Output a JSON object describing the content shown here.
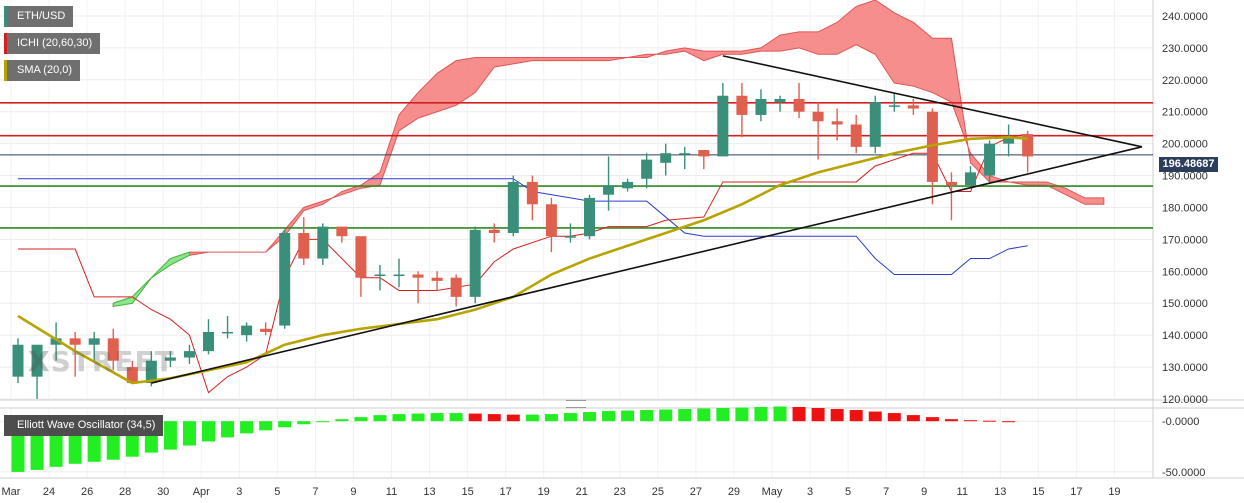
{
  "legend": {
    "symbol": "ETH/USD",
    "ichimoku": "ICHI (20,60,30)",
    "sma": "SMA (20,0)",
    "oscillator": "Elliott Wave Oscillator (34,5)"
  },
  "watermark": {
    "prefix": "X",
    "word": "STREET"
  },
  "current_price": "196.48687",
  "colors": {
    "bull": "#3a8f7b",
    "bear": "#e06050",
    "cloud": "#f47a7a",
    "cloud_bull": "#8fe28f",
    "sma": "#b7a400",
    "kijun": "#d62020",
    "tenkan": "#2c3ccc",
    "hline_red": "#d62020",
    "hline_green": "#2e8a1f",
    "osc_pos": "#22ee22",
    "osc_neg": "#ee1111"
  },
  "chart_data": [
    {
      "type": "candlestick",
      "title": "ETH/USD",
      "ylim": [
        120,
        245
      ],
      "y_ticks": [
        "240.0000",
        "230.0000",
        "220.0000",
        "210.0000",
        "200.0000",
        "190.0000",
        "180.0000",
        "170.0000",
        "160.0000",
        "150.0000",
        "140.0000",
        "130.0000",
        "120.0000"
      ],
      "x_ticks": [
        "Mar",
        "24",
        "26",
        "28",
        "30",
        "Apr",
        "3",
        "5",
        "7",
        "9",
        "11",
        "13",
        "15",
        "17",
        "19",
        "21",
        "23",
        "25",
        "27",
        "29",
        "May",
        "3",
        "5",
        "7",
        "9",
        "11",
        "13",
        "15",
        "17",
        "19"
      ],
      "candles": [
        {
          "o": 127,
          "h": 139,
          "l": 125,
          "c": 137
        },
        {
          "o": 127,
          "h": 136,
          "l": 120,
          "c": 137
        },
        {
          "o": 137,
          "h": 144,
          "l": 132,
          "c": 139
        },
        {
          "o": 139,
          "h": 141,
          "l": 127,
          "c": 137
        },
        {
          "o": 137,
          "h": 141,
          "l": 132,
          "c": 139
        },
        {
          "o": 139,
          "h": 142,
          "l": 129,
          "c": 132
        },
        {
          "o": 130,
          "h": 132,
          "l": 125,
          "c": 125
        },
        {
          "o": 125,
          "h": 135,
          "l": 124,
          "c": 132
        },
        {
          "o": 132,
          "h": 135,
          "l": 130,
          "c": 133
        },
        {
          "o": 133,
          "h": 137,
          "l": 131,
          "c": 135
        },
        {
          "o": 135,
          "h": 145,
          "l": 134,
          "c": 141
        },
        {
          "o": 141,
          "h": 146,
          "l": 139,
          "c": 141
        },
        {
          "o": 140,
          "h": 144,
          "l": 138,
          "c": 143
        },
        {
          "o": 142,
          "h": 144,
          "l": 140,
          "c": 141
        },
        {
          "o": 143,
          "h": 173,
          "l": 142,
          "c": 172
        },
        {
          "o": 172,
          "h": 177,
          "l": 162,
          "c": 164
        },
        {
          "o": 164,
          "h": 175,
          "l": 162,
          "c": 174
        },
        {
          "o": 174,
          "h": 174,
          "l": 169,
          "c": 171
        },
        {
          "o": 171,
          "h": 170,
          "l": 152,
          "c": 158
        },
        {
          "o": 159,
          "h": 162,
          "l": 154,
          "c": 159
        },
        {
          "o": 159,
          "h": 164,
          "l": 155,
          "c": 159
        },
        {
          "o": 159,
          "h": 160,
          "l": 150,
          "c": 158
        },
        {
          "o": 158,
          "h": 160,
          "l": 154,
          "c": 157
        },
        {
          "o": 158,
          "h": 159,
          "l": 149,
          "c": 152
        },
        {
          "o": 152,
          "h": 174,
          "l": 150,
          "c": 173
        },
        {
          "o": 173,
          "h": 175,
          "l": 169,
          "c": 172
        },
        {
          "o": 172,
          "h": 190,
          "l": 171,
          "c": 188
        },
        {
          "o": 188,
          "h": 190,
          "l": 176,
          "c": 181
        },
        {
          "o": 181,
          "h": 183,
          "l": 166,
          "c": 171
        },
        {
          "o": 171,
          "h": 175,
          "l": 169,
          "c": 171
        },
        {
          "o": 171,
          "h": 184,
          "l": 170,
          "c": 183
        },
        {
          "o": 184,
          "h": 196,
          "l": 179,
          "c": 187
        },
        {
          "o": 186,
          "h": 189,
          "l": 185,
          "c": 188
        },
        {
          "o": 189,
          "h": 197,
          "l": 186,
          "c": 195
        },
        {
          "o": 194,
          "h": 200,
          "l": 190,
          "c": 197
        },
        {
          "o": 197,
          "h": 199,
          "l": 192,
          "c": 197
        },
        {
          "o": 198,
          "h": 198,
          "l": 192,
          "c": 196
        },
        {
          "o": 196,
          "h": 219,
          "l": 196,
          "c": 215
        },
        {
          "o": 215,
          "h": 219,
          "l": 202,
          "c": 209
        },
        {
          "o": 209,
          "h": 217,
          "l": 207,
          "c": 214
        },
        {
          "o": 213,
          "h": 215,
          "l": 210,
          "c": 214
        },
        {
          "o": 214,
          "h": 219,
          "l": 208,
          "c": 210
        },
        {
          "o": 210,
          "h": 213,
          "l": 195,
          "c": 207
        },
        {
          "o": 207,
          "h": 211,
          "l": 201,
          "c": 206
        },
        {
          "o": 206,
          "h": 209,
          "l": 197,
          "c": 199
        },
        {
          "o": 199,
          "h": 215,
          "l": 197,
          "c": 213
        },
        {
          "o": 212,
          "h": 216,
          "l": 210,
          "c": 212
        },
        {
          "o": 212,
          "h": 214,
          "l": 209,
          "c": 211
        },
        {
          "o": 210,
          "h": 211,
          "l": 181,
          "c": 188
        },
        {
          "o": 188,
          "h": 191,
          "l": 176,
          "c": 187
        },
        {
          "o": 187,
          "h": 193,
          "l": 186,
          "c": 191
        },
        {
          "o": 190,
          "h": 201,
          "l": 188,
          "c": 200
        },
        {
          "o": 200,
          "h": 206,
          "l": 196,
          "c": 202
        },
        {
          "o": 203,
          "h": 204,
          "l": 191,
          "c": 196
        }
      ],
      "sma": [
        [
          0,
          146
        ],
        [
          3,
          135
        ],
        [
          6,
          125
        ],
        [
          8,
          126.5
        ],
        [
          10,
          129
        ],
        [
          12,
          131.5
        ],
        [
          14,
          137
        ],
        [
          16,
          140
        ],
        [
          18,
          142
        ],
        [
          20,
          143.5
        ],
        [
          22,
          145
        ],
        [
          24,
          148
        ],
        [
          26,
          152
        ],
        [
          28,
          159
        ],
        [
          30,
          164
        ],
        [
          32,
          168
        ],
        [
          34,
          172
        ],
        [
          36,
          176
        ],
        [
          38,
          181
        ],
        [
          40,
          187
        ],
        [
          42,
          191
        ],
        [
          44,
          194
        ],
        [
          46,
          197
        ],
        [
          48,
          199.5
        ],
        [
          50,
          201.5
        ],
        [
          52,
          202
        ],
        [
          53,
          201.5
        ]
      ],
      "kijun": [
        [
          0,
          167
        ],
        [
          3,
          167
        ],
        [
          4,
          152
        ],
        [
          6,
          152
        ],
        [
          7,
          148
        ],
        [
          8,
          145
        ],
        [
          9,
          140
        ],
        [
          10,
          122
        ],
        [
          11,
          127
        ],
        [
          12,
          130
        ],
        [
          13,
          134
        ],
        [
          14,
          158
        ],
        [
          15,
          170
        ],
        [
          16,
          170
        ],
        [
          18,
          158
        ],
        [
          19,
          158
        ],
        [
          20,
          154
        ],
        [
          22,
          154
        ],
        [
          24,
          156
        ],
        [
          25,
          163
        ],
        [
          26,
          167
        ],
        [
          28,
          171
        ],
        [
          29,
          171
        ],
        [
          30,
          172
        ],
        [
          31,
          174
        ],
        [
          33,
          174
        ],
        [
          34,
          176
        ],
        [
          36,
          177
        ],
        [
          37,
          188
        ],
        [
          42,
          188
        ],
        [
          44,
          188
        ],
        [
          45,
          193
        ],
        [
          47,
          197
        ],
        [
          48,
          197
        ],
        [
          49,
          185
        ],
        [
          50,
          185
        ],
        [
          51,
          199
        ],
        [
          52,
          202
        ],
        [
          53,
          203
        ]
      ],
      "tenkan": [
        [
          0,
          189
        ],
        [
          10,
          189
        ],
        [
          20,
          189
        ],
        [
          26,
          189
        ],
        [
          27,
          185
        ],
        [
          29,
          183
        ],
        [
          30,
          182
        ],
        [
          33,
          182
        ],
        [
          34,
          177
        ],
        [
          35,
          172
        ],
        [
          36,
          171
        ],
        [
          40,
          171
        ],
        [
          44,
          171
        ],
        [
          45,
          164
        ],
        [
          46,
          159
        ],
        [
          48,
          159
        ],
        [
          49,
          159
        ],
        [
          50,
          164
        ],
        [
          51,
          164
        ],
        [
          52,
          167
        ],
        [
          53,
          168
        ]
      ],
      "cloud_top": [
        [
          5,
          149
        ],
        [
          6,
          150
        ],
        [
          7,
          158
        ],
        [
          8,
          164
        ],
        [
          9,
          166
        ],
        [
          10,
          166
        ],
        [
          11,
          166
        ],
        [
          12,
          166
        ],
        [
          13,
          166
        ],
        [
          14,
          171
        ],
        [
          15,
          179
        ],
        [
          16,
          181
        ],
        [
          17,
          185
        ],
        [
          18,
          187
        ],
        [
          19,
          191
        ],
        [
          20,
          209
        ],
        [
          21,
          216
        ],
        [
          22,
          222
        ],
        [
          23,
          226
        ],
        [
          24,
          227
        ],
        [
          25,
          227
        ],
        [
          26,
          227
        ],
        [
          27,
          227
        ],
        [
          28,
          227
        ],
        [
          29,
          227
        ],
        [
          30,
          227
        ],
        [
          31,
          227
        ],
        [
          32,
          227
        ],
        [
          33,
          227
        ],
        [
          34,
          229
        ],
        [
          35,
          230
        ],
        [
          36,
          229
        ],
        [
          37,
          229
        ],
        [
          38,
          229
        ],
        [
          39,
          230
        ],
        [
          40,
          234
        ],
        [
          41,
          235
        ],
        [
          42,
          235
        ],
        [
          43,
          238
        ],
        [
          44,
          243
        ],
        [
          45,
          245
        ],
        [
          46,
          241
        ],
        [
          47,
          238
        ],
        [
          48,
          233
        ],
        [
          49,
          233
        ],
        [
          50,
          194
        ],
        [
          51,
          188
        ],
        [
          52,
          188
        ],
        [
          53,
          188
        ],
        [
          54,
          188
        ],
        [
          55,
          186
        ],
        [
          56,
          183
        ],
        [
          57,
          183
        ]
      ],
      "cloud_bottom": [
        [
          5,
          150
        ],
        [
          6,
          152
        ],
        [
          7,
          158
        ],
        [
          8,
          162
        ],
        [
          9,
          165
        ],
        [
          10,
          166
        ],
        [
          11,
          166
        ],
        [
          12,
          166
        ],
        [
          13,
          166
        ],
        [
          14,
          173
        ],
        [
          15,
          180
        ],
        [
          16,
          182
        ],
        [
          17,
          184
        ],
        [
          18,
          186
        ],
        [
          19,
          187
        ],
        [
          20,
          204
        ],
        [
          21,
          208
        ],
        [
          22,
          210
        ],
        [
          23,
          212
        ],
        [
          24,
          216
        ],
        [
          25,
          224
        ],
        [
          26,
          225
        ],
        [
          27,
          226
        ],
        [
          28,
          226
        ],
        [
          29,
          226
        ],
        [
          30,
          226
        ],
        [
          31,
          226
        ],
        [
          32,
          227
        ],
        [
          33,
          228
        ],
        [
          34,
          228
        ],
        [
          35,
          229
        ],
        [
          36,
          226
        ],
        [
          37,
          228
        ],
        [
          38,
          228
        ],
        [
          39,
          229
        ],
        [
          40,
          229
        ],
        [
          41,
          230
        ],
        [
          42,
          228
        ],
        [
          43,
          228
        ],
        [
          44,
          231
        ],
        [
          45,
          228
        ],
        [
          46,
          219
        ],
        [
          47,
          218
        ],
        [
          48,
          216
        ],
        [
          49,
          213
        ],
        [
          50,
          197
        ],
        [
          51,
          190
        ],
        [
          52,
          188
        ],
        [
          53,
          187
        ],
        [
          54,
          187
        ],
        [
          55,
          184
        ],
        [
          56,
          181
        ],
        [
          57,
          181
        ]
      ],
      "horizontal_lines": [
        {
          "y": 212.8,
          "color": "red"
        },
        {
          "y": 202.5,
          "color": "red"
        },
        {
          "y": 196.49,
          "color": "gray"
        },
        {
          "y": 186.7,
          "color": "green"
        },
        {
          "y": 173.6,
          "color": "green"
        }
      ],
      "triangle": {
        "upper": [
          [
            37,
            227.5
          ],
          [
            59,
            199
          ]
        ],
        "lower": [
          [
            7,
            125
          ],
          [
            59,
            199
          ]
        ]
      }
    },
    {
      "type": "bar",
      "title": "Elliott Wave Oscillator (34,5)",
      "ylim": [
        -56,
        13
      ],
      "y_ticks": [
        "-0.0000",
        "-50.0000"
      ],
      "values": [
        -50,
        -48,
        -45,
        -42,
        -40,
        -38,
        -35,
        -31,
        -28,
        -24,
        -20,
        -16,
        -12,
        -9,
        -6,
        -3,
        -1,
        2,
        4,
        6,
        7,
        7.5,
        8,
        8,
        7.5,
        7,
        6.5,
        6.5,
        7,
        8,
        9,
        10,
        10.5,
        11,
        11.5,
        12,
        12.5,
        13,
        13.5,
        14,
        14.5,
        14,
        13,
        12,
        11,
        9.5,
        8,
        6,
        4,
        2,
        1,
        0.5,
        0
      ]
    }
  ]
}
